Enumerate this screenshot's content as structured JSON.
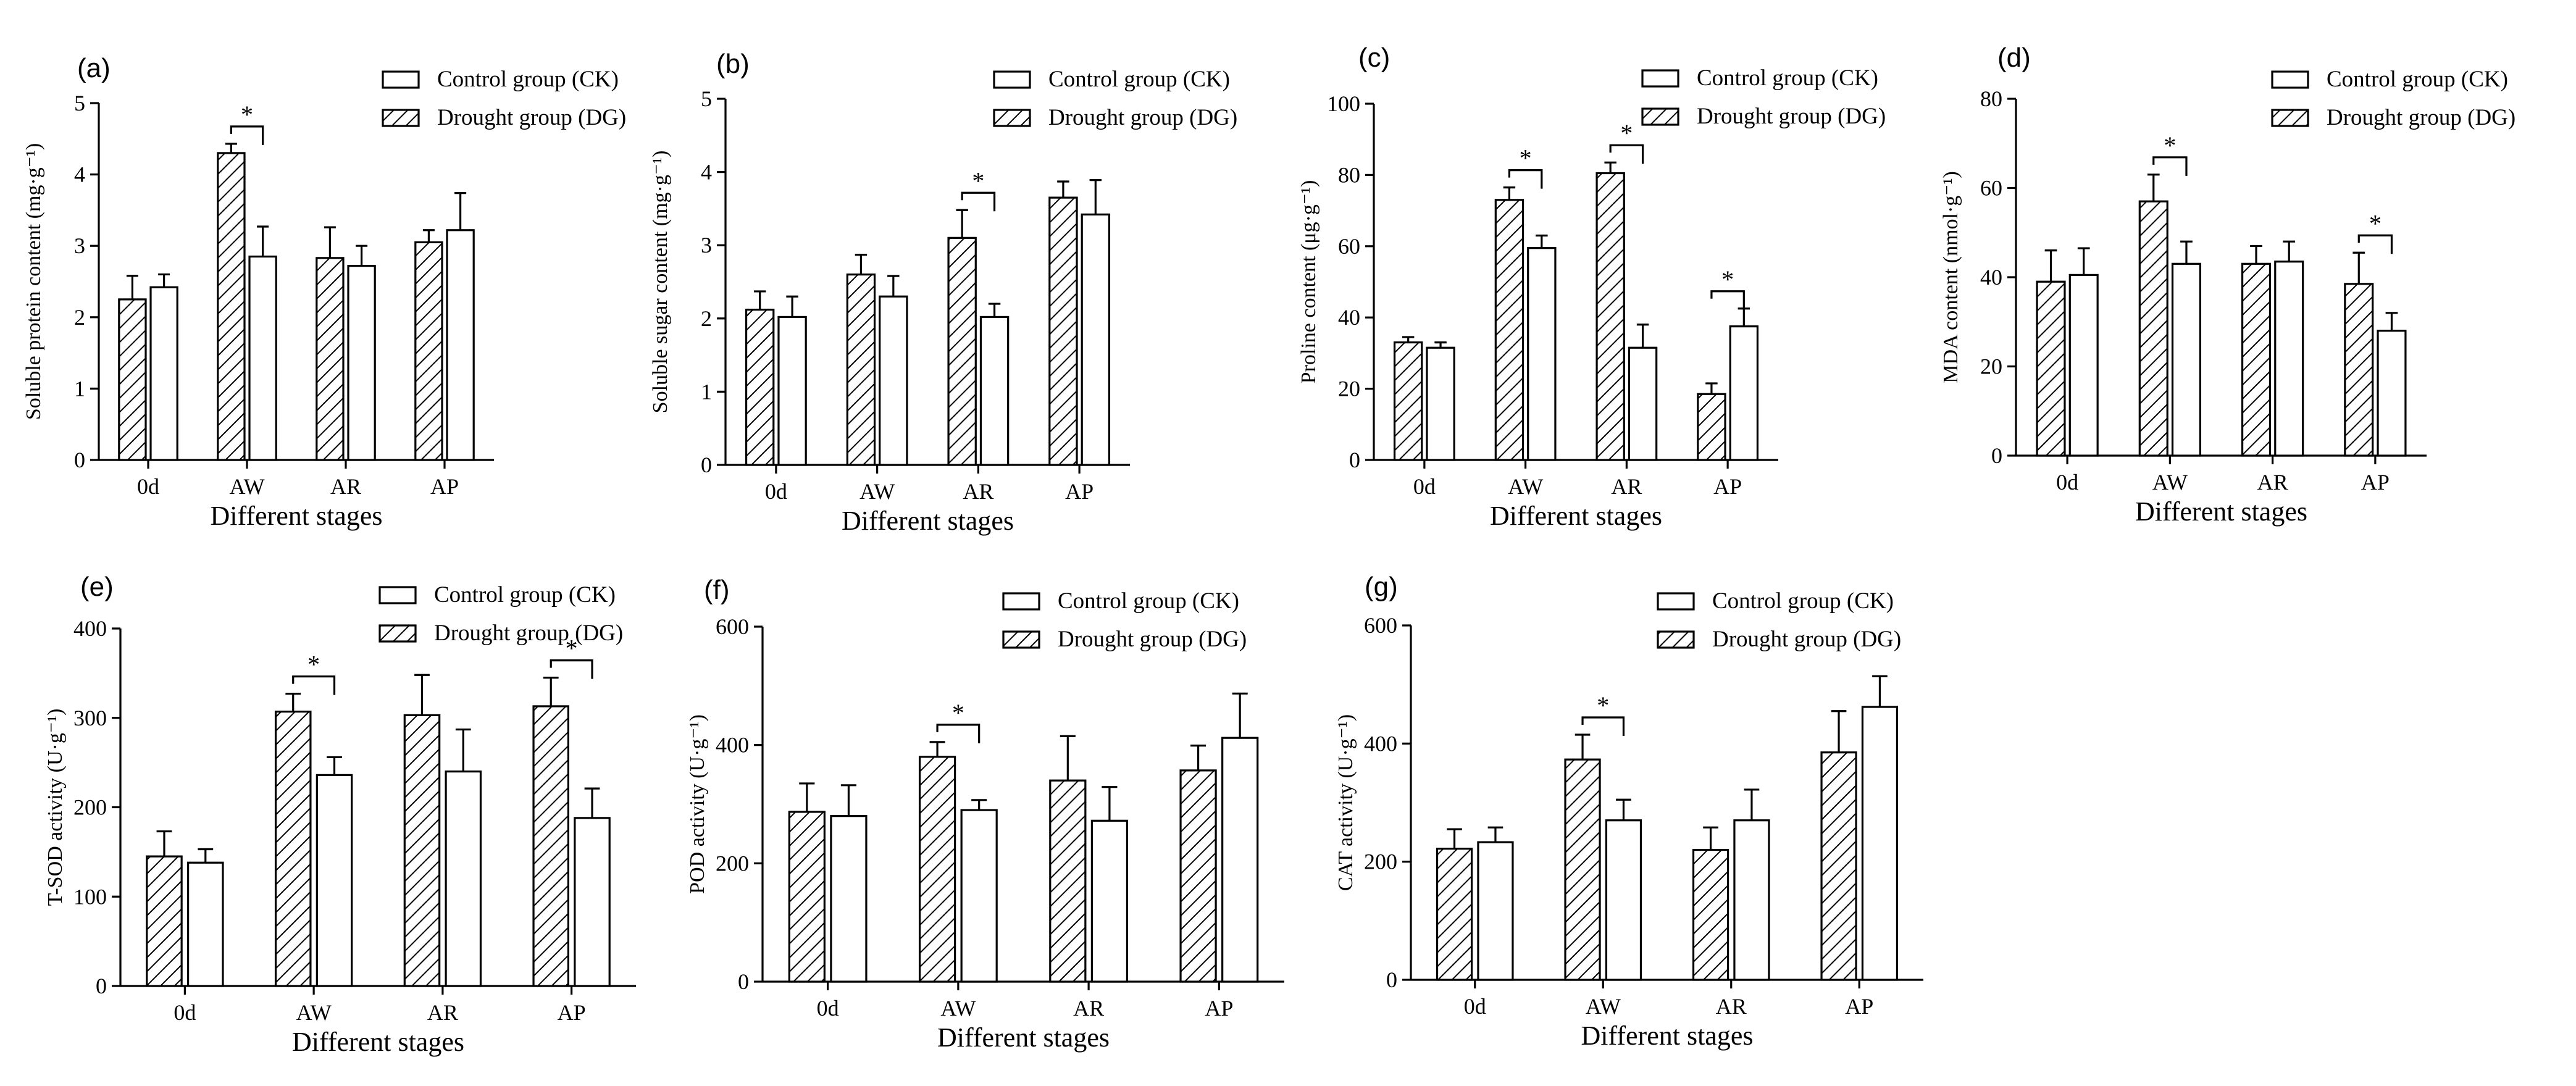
{
  "figure": {
    "background": "#ffffff",
    "ink": "#000000",
    "hatch_style": "diagonal-hatch",
    "control_fill": "#ffffff"
  },
  "chart_data": [
    {
      "type": "bar",
      "panel": "(a)",
      "ylabel": "Soluble protein content (mg·g⁻¹)",
      "xlabel": "Different stages",
      "categories": [
        "0d",
        "AW",
        "AR",
        "AP"
      ],
      "ylim": [
        0,
        5
      ],
      "yticks": [
        0,
        1,
        2,
        3,
        4,
        5
      ],
      "legend": {
        "position": "top-right",
        "entries": [
          "Control group (CK)",
          "Drought group (DG)"
        ]
      },
      "series": [
        {
          "name": "Drought group (DG)",
          "pattern": "hatched",
          "values": [
            2.25,
            4.3,
            2.83,
            3.05
          ],
          "errors": [
            0.33,
            0.13,
            0.43,
            0.17
          ]
        },
        {
          "name": "Control group (CK)",
          "pattern": "open",
          "values": [
            2.42,
            2.85,
            2.72,
            3.22
          ],
          "errors": [
            0.18,
            0.42,
            0.28,
            0.52
          ]
        }
      ],
      "significance": [
        {
          "category": "AW",
          "label": "*"
        }
      ]
    },
    {
      "type": "bar",
      "panel": "(b)",
      "ylabel": "Soluble sugar content (mg·g⁻¹)",
      "xlabel": "Different stages",
      "categories": [
        "0d",
        "AW",
        "AR",
        "AP"
      ],
      "ylim": [
        0,
        5
      ],
      "yticks": [
        0,
        1,
        2,
        3,
        4,
        5
      ],
      "legend": {
        "position": "top-right",
        "entries": [
          "Control group (CK)",
          "Drought group (DG)"
        ]
      },
      "series": [
        {
          "name": "Drought group (DG)",
          "pattern": "hatched",
          "values": [
            2.12,
            2.6,
            3.1,
            3.65
          ],
          "errors": [
            0.25,
            0.27,
            0.38,
            0.22
          ]
        },
        {
          "name": "Control group (CK)",
          "pattern": "open",
          "values": [
            2.02,
            2.3,
            2.02,
            3.42
          ],
          "errors": [
            0.28,
            0.28,
            0.18,
            0.47
          ]
        }
      ],
      "significance": [
        {
          "category": "AR",
          "label": "*"
        }
      ]
    },
    {
      "type": "bar",
      "panel": "(c)",
      "ylabel": "Proline content (μg·g⁻¹)",
      "xlabel": "Different stages",
      "categories": [
        "0d",
        "AW",
        "AR",
        "AP"
      ],
      "ylim": [
        0,
        100
      ],
      "yticks": [
        0,
        20,
        40,
        60,
        80,
        100
      ],
      "legend": {
        "position": "top-right",
        "entries": [
          "Control group (CK)",
          "Drought group (DG)"
        ]
      },
      "series": [
        {
          "name": "Drought group (DG)",
          "pattern": "hatched",
          "values": [
            33,
            73,
            80.5,
            18.5
          ],
          "errors": [
            1.5,
            3.5,
            3.0,
            3.0
          ]
        },
        {
          "name": "Control group (CK)",
          "pattern": "open",
          "values": [
            31.5,
            59.5,
            31.5,
            37.5
          ],
          "errors": [
            1.5,
            3.5,
            6.5,
            5.0
          ]
        }
      ],
      "significance": [
        {
          "category": "AW",
          "label": "*"
        },
        {
          "category": "AR",
          "label": "*"
        },
        {
          "category": "AP",
          "label": "*"
        }
      ]
    },
    {
      "type": "bar",
      "panel": "(d)",
      "ylabel": "MDA content (nmol·g⁻¹)",
      "xlabel": "Different stages",
      "categories": [
        "0d",
        "AW",
        "AR",
        "AP"
      ],
      "ylim": [
        0,
        80
      ],
      "yticks": [
        0,
        20,
        40,
        60,
        80
      ],
      "legend": {
        "position": "top-right",
        "entries": [
          "Control group (CK)",
          "Drought group (DG)"
        ]
      },
      "series": [
        {
          "name": "Drought group (DG)",
          "pattern": "hatched",
          "values": [
            39,
            57,
            43,
            38.5
          ],
          "errors": [
            7,
            6,
            4,
            7
          ]
        },
        {
          "name": "Control group (CK)",
          "pattern": "open",
          "values": [
            40.5,
            43,
            43.5,
            28
          ],
          "errors": [
            6,
            5,
            4.5,
            4
          ]
        }
      ],
      "significance": [
        {
          "category": "AW",
          "label": "*"
        },
        {
          "category": "AP",
          "label": "*"
        }
      ]
    },
    {
      "type": "bar",
      "panel": "(e)",
      "ylabel": "T-SOD activity (U·g⁻¹)",
      "xlabel": "Different stages",
      "categories": [
        "0d",
        "AW",
        "AR",
        "AP"
      ],
      "ylim": [
        0,
        400
      ],
      "yticks": [
        0,
        100,
        200,
        300,
        400
      ],
      "legend": {
        "position": "top-right",
        "entries": [
          "Control group (CK)",
          "Drought group (DG)"
        ]
      },
      "series": [
        {
          "name": "Drought group (DG)",
          "pattern": "hatched",
          "values": [
            145,
            307,
            303,
            313
          ],
          "errors": [
            28,
            20,
            45,
            32
          ]
        },
        {
          "name": "Control group (CK)",
          "pattern": "open",
          "values": [
            138,
            236,
            240,
            188
          ],
          "errors": [
            15,
            20,
            47,
            33
          ]
        }
      ],
      "significance": [
        {
          "category": "AW",
          "label": "*"
        },
        {
          "category": "AP",
          "label": "*"
        }
      ]
    },
    {
      "type": "bar",
      "panel": "(f)",
      "ylabel": "POD activity (U·g⁻¹)",
      "xlabel": "Different stages",
      "categories": [
        "0d",
        "AW",
        "AR",
        "AP"
      ],
      "ylim": [
        0,
        600
      ],
      "yticks": [
        0,
        200,
        400,
        600
      ],
      "legend": {
        "position": "top-right",
        "entries": [
          "Control group (CK)",
          "Drought group (DG)"
        ]
      },
      "series": [
        {
          "name": "Drought group (DG)",
          "pattern": "hatched",
          "values": [
            287,
            380,
            340,
            357
          ],
          "errors": [
            48,
            25,
            75,
            42
          ]
        },
        {
          "name": "Control group (CK)",
          "pattern": "open",
          "values": [
            280,
            290,
            272,
            412
          ],
          "errors": [
            52,
            17,
            57,
            75
          ]
        }
      ],
      "significance": [
        {
          "category": "AW",
          "label": "*"
        }
      ]
    },
    {
      "type": "bar",
      "panel": "(g)",
      "ylabel": "CAT activity (U·g⁻¹)",
      "xlabel": "Different stages",
      "categories": [
        "0d",
        "AW",
        "AR",
        "AP"
      ],
      "ylim": [
        0,
        600
      ],
      "yticks": [
        0,
        200,
        400,
        600
      ],
      "legend": {
        "position": "top-right",
        "entries": [
          "Control group (CK)",
          "Drought group (DG)"
        ]
      },
      "series": [
        {
          "name": "Drought group (DG)",
          "pattern": "hatched",
          "values": [
            222,
            373,
            220,
            385
          ],
          "errors": [
            33,
            42,
            38,
            70
          ]
        },
        {
          "name": "Control group (CK)",
          "pattern": "open",
          "values": [
            233,
            270,
            270,
            462
          ],
          "errors": [
            25,
            35,
            52,
            52
          ]
        }
      ],
      "significance": [
        {
          "category": "AW",
          "label": "*"
        }
      ]
    }
  ]
}
